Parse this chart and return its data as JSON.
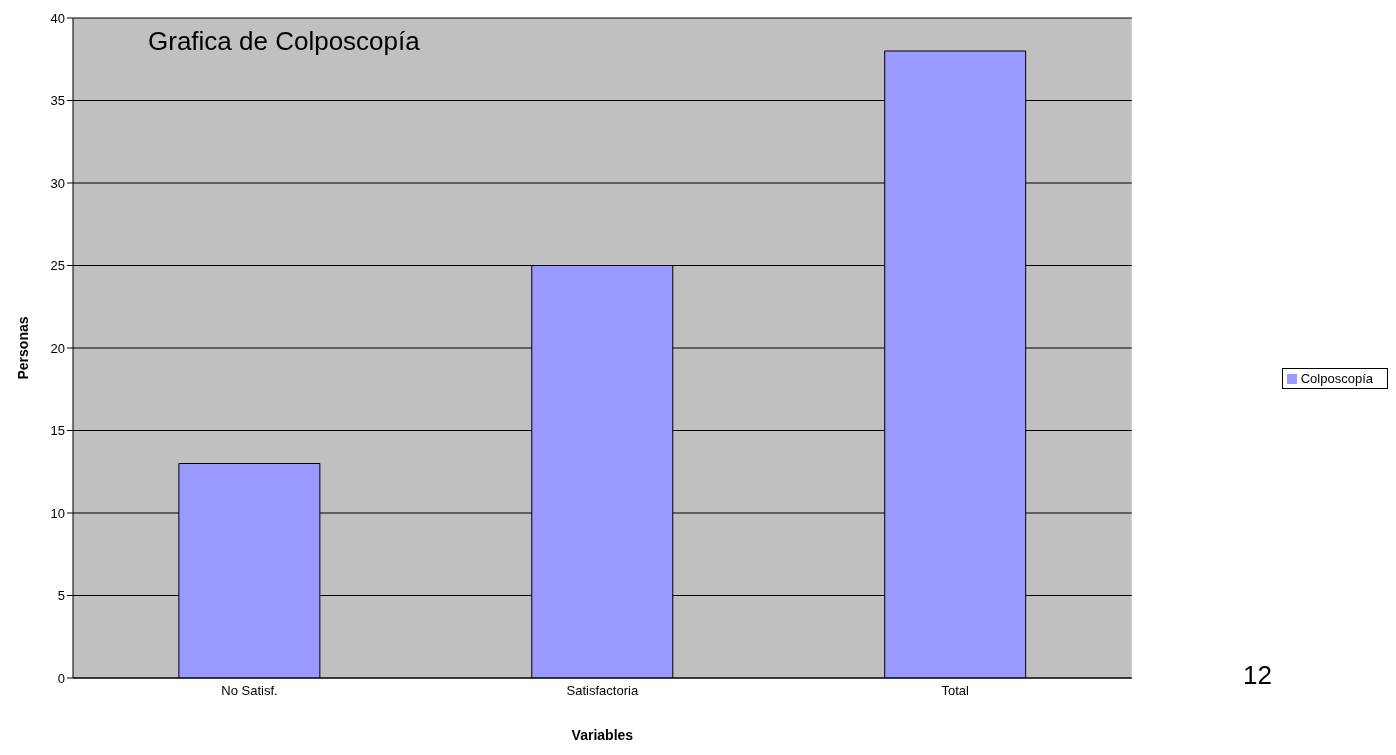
{
  "chart_data": {
    "type": "bar",
    "title": "Grafica de Colposcopía",
    "xlabel": "Variables",
    "ylabel": "Personas",
    "categories": [
      "No Satisf.",
      "Satisfactoria",
      "Total"
    ],
    "series": [
      {
        "name": "Colposcopía",
        "color": "#9999ff",
        "values": [
          13,
          25,
          38
        ]
      }
    ],
    "ylim": [
      0,
      40
    ],
    "yticks": [
      0,
      5,
      10,
      15,
      20,
      25,
      30,
      35,
      40
    ],
    "grid": "y",
    "legend": "right",
    "annotations": [
      "12"
    ]
  }
}
